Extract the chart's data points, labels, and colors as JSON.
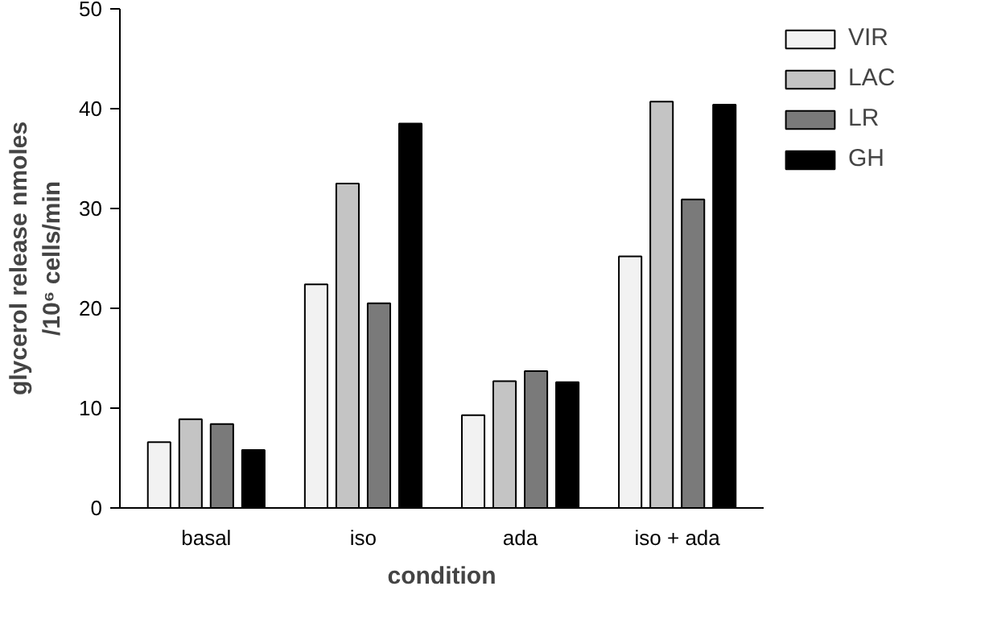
{
  "chart_data": {
    "type": "bar",
    "xlabel": "condition",
    "ylabel": "glycerol release nmoles /10⁶ cells/min",
    "categories": [
      "basal",
      "iso",
      "ada",
      "iso + ada"
    ],
    "series": [
      {
        "name": "VIR",
        "color": "#f2f2f2",
        "values": [
          6.6,
          22.4,
          9.3,
          25.2
        ]
      },
      {
        "name": "LAC",
        "color": "#c4c4c4",
        "values": [
          8.9,
          32.5,
          12.7,
          40.7
        ]
      },
      {
        "name": "LR",
        "color": "#7a7a7a",
        "values": [
          8.4,
          20.5,
          13.7,
          30.9
        ]
      },
      {
        "name": "GH",
        "color": "#000000",
        "values": [
          5.8,
          38.5,
          12.6,
          40.4
        ]
      }
    ],
    "ylim": [
      0,
      50
    ],
    "yticks": [
      0,
      10,
      20,
      30,
      40,
      50
    ],
    "grid": false,
    "legend": "right"
  }
}
